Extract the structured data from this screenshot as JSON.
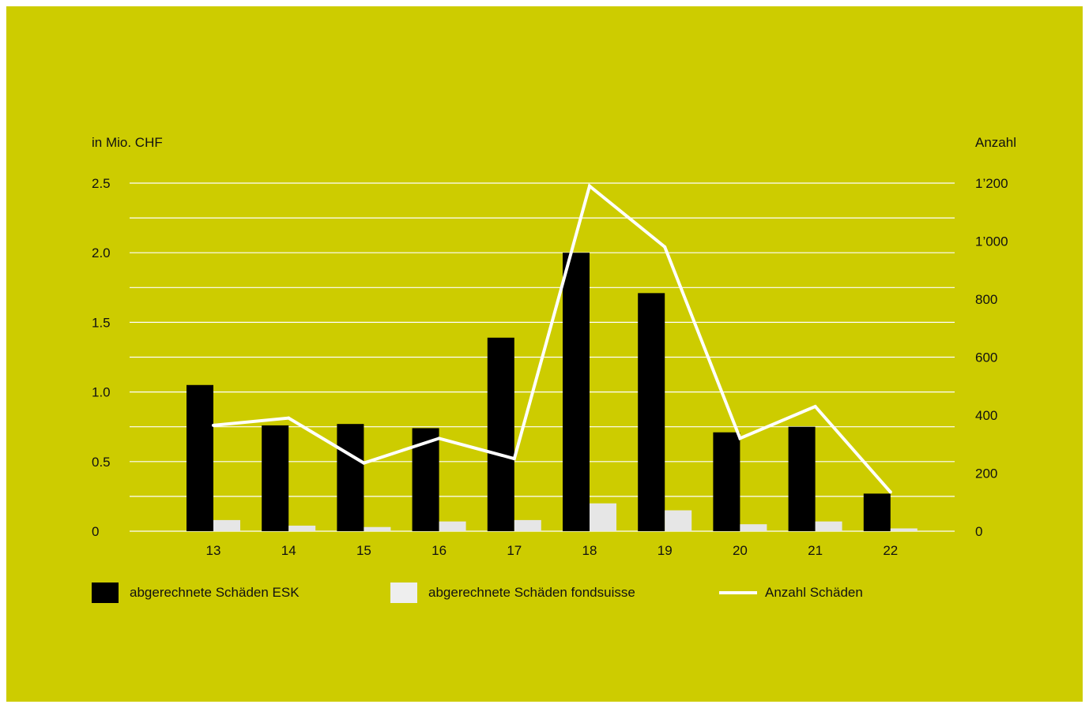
{
  "chart_data": {
    "type": "bar",
    "categories": [
      "13",
      "14",
      "15",
      "16",
      "17",
      "18",
      "19",
      "20",
      "21",
      "22"
    ],
    "series": [
      {
        "name": "abgerechnete Schäden ESK",
        "type": "bar",
        "axis": "left",
        "color": "#000000",
        "values": [
          1.05,
          0.76,
          0.77,
          0.74,
          1.39,
          2.0,
          1.71,
          0.71,
          0.75,
          0.27
        ]
      },
      {
        "name": "abgerechnete Schäden fondsuisse",
        "type": "bar",
        "axis": "left",
        "color": "#e6e6e6",
        "values": [
          0.08,
          0.04,
          0.03,
          0.07,
          0.08,
          0.2,
          0.15,
          0.05,
          0.07,
          0.02
        ]
      },
      {
        "name": "Anzahl Schäden",
        "type": "line",
        "axis": "right",
        "color": "#ffffff",
        "values": [
          365,
          390,
          235,
          320,
          250,
          1190,
          980,
          320,
          430,
          135
        ]
      }
    ],
    "ylabel": "in Mio. CHF",
    "y2label": "Anzahl",
    "ylim": [
      0,
      2.5
    ],
    "y2lim": [
      0,
      1200
    ],
    "yticks": [
      "0",
      "0.5",
      "1.0",
      "1.5",
      "2.0",
      "2.5"
    ],
    "y2ticks": [
      "0",
      "200",
      "400",
      "600",
      "800",
      "1’000",
      "1’200"
    ],
    "grid": true,
    "legend": "bottom",
    "background": "#cdcc00"
  }
}
